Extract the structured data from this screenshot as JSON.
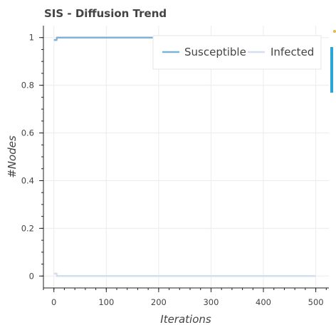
{
  "chart_data": {
    "type": "line",
    "title": "SIS - Diffusion Trend",
    "xlabel": "Iterations",
    "ylabel": "#Nodes",
    "xlim": [
      -20,
      525
    ],
    "ylim": [
      -0.05,
      1.05
    ],
    "xticks": [
      0,
      100,
      200,
      300,
      400,
      500
    ],
    "yticks": [
      0,
      0.2,
      0.4,
      0.6,
      0.8,
      1
    ],
    "ytick_labels": [
      "0",
      "0.2",
      "0.4",
      "0.6",
      "0.8",
      "1"
    ],
    "grid": true,
    "legend_position": "top-right",
    "series": [
      {
        "name": "Susceptible",
        "color": "#7fb3d5",
        "x": [
          0,
          5,
          6,
          500
        ],
        "y": [
          0.99,
          0.99,
          1.0,
          1.0
        ]
      },
      {
        "name": "Infected",
        "color": "#d2dff0",
        "x": [
          0,
          5,
          6,
          500
        ],
        "y": [
          0.01,
          0.01,
          0.0,
          0.0
        ]
      }
    ]
  }
}
